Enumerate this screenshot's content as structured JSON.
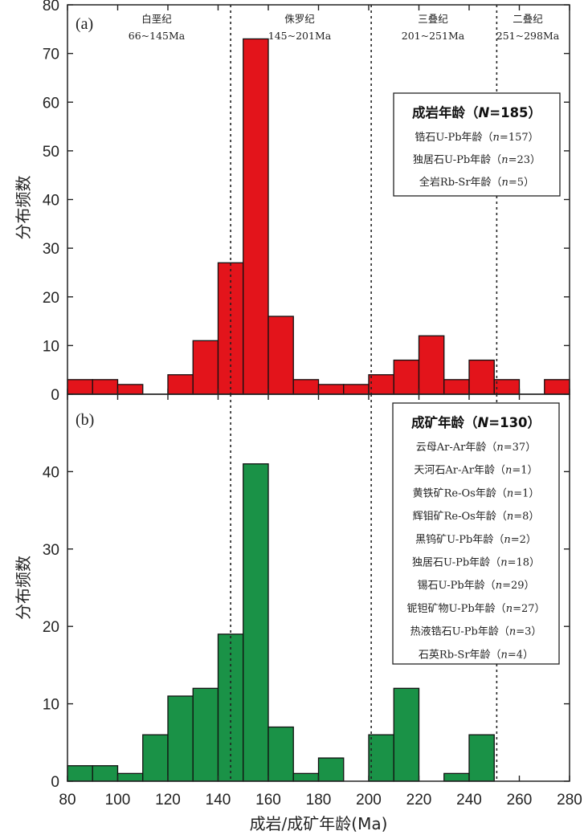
{
  "chart_data": [
    {
      "panel": "(a)",
      "type": "bar",
      "color": "#e3141b",
      "bin_width": 10,
      "x": [
        80,
        90,
        100,
        110,
        120,
        130,
        140,
        150,
        160,
        170,
        180,
        190,
        200,
        210,
        220,
        230,
        240,
        250,
        260,
        270
      ],
      "values": [
        3,
        3,
        2,
        0,
        4,
        11,
        27,
        73,
        16,
        3,
        2,
        2,
        4,
        7,
        12,
        3,
        7,
        3,
        0,
        3
      ],
      "ylabel": "分布频数",
      "ylim": [
        0,
        80
      ],
      "yticks": [
        "0",
        "10",
        "20",
        "30",
        "40",
        "50",
        "60",
        "70",
        "80"
      ],
      "periods": [
        {
          "name": "白垩纪",
          "range": "66~145Ma"
        },
        {
          "name": "侏罗纪",
          "range": "145~201Ma"
        },
        {
          "name": "三叠纪",
          "range": "201~251Ma"
        },
        {
          "name": "二叠纪",
          "range": "251~298Ma"
        }
      ],
      "boundaries": [
        145,
        201,
        251
      ],
      "legend": {
        "title": "成岩年龄",
        "n_label": "N",
        "n_value": "=185",
        "items": [
          {
            "name": "锆石U-Pb年龄",
            "n": "=157"
          },
          {
            "name": "独居石U-Pb年龄",
            "n": "=23"
          },
          {
            "name": "全岩Rb-Sr年龄",
            "n": "=5"
          }
        ]
      }
    },
    {
      "panel": "(b)",
      "type": "bar",
      "color": "#1a9247",
      "bin_width": 10,
      "x": [
        80,
        90,
        100,
        110,
        120,
        130,
        140,
        150,
        160,
        170,
        180,
        190,
        200,
        210,
        220,
        230,
        240,
        250,
        260,
        270
      ],
      "values": [
        2,
        2,
        1,
        6,
        11,
        12,
        19,
        41,
        7,
        1,
        3,
        0,
        6,
        12,
        0,
        1,
        6,
        0,
        0,
        0
      ],
      "ylabel": "分布频数",
      "ylim": [
        0,
        50
      ],
      "yticks": [
        "0",
        "10",
        "20",
        "30",
        "40"
      ],
      "xlabel": "成岩/成矿年龄(Ma)",
      "xlim": [
        80,
        280
      ],
      "xticks": [
        "80",
        "100",
        "120",
        "140",
        "160",
        "180",
        "200",
        "220",
        "240",
        "260",
        "280"
      ],
      "boundaries": [
        145,
        201,
        251
      ],
      "legend": {
        "title": "成矿年龄",
        "n_label": "N",
        "n_value": "=130",
        "items": [
          {
            "name": "云母Ar-Ar年龄",
            "n": "=37"
          },
          {
            "name": "天河石Ar-Ar年龄",
            "n": "=1"
          },
          {
            "name": "黄铁矿Re-Os年龄",
            "n": "=1"
          },
          {
            "name": "辉钼矿Re-Os年龄",
            "n": "=8"
          },
          {
            "name": "黑钨矿U-Pb年龄",
            "n": "=2"
          },
          {
            "name": "独居石U-Pb年龄",
            "n": "=18"
          },
          {
            "name": "锡石U-Pb年龄",
            "n": "=29"
          },
          {
            "name": "铌钽矿物U-Pb年龄",
            "n": "=27"
          },
          {
            "name": "热液锆石U-Pb年龄",
            "n": "=3"
          },
          {
            "name": "石英Rb-Sr年龄",
            "n": "=4"
          }
        ]
      }
    }
  ]
}
